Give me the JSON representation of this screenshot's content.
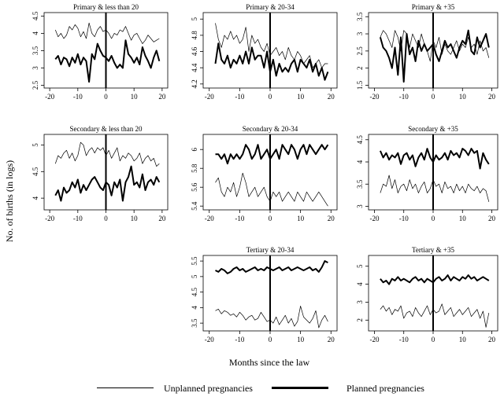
{
  "chart_data": {
    "type": "line",
    "xlabel": "Months since the law",
    "ylabel": "No. of births (in logs)",
    "x": [
      -18,
      -17,
      -16,
      -15,
      -14,
      -13,
      -12,
      -11,
      -10,
      -9,
      -8,
      -7,
      -6,
      -5,
      -4,
      -3,
      -2,
      -1,
      0,
      1,
      2,
      3,
      4,
      5,
      6,
      7,
      8,
      9,
      10,
      11,
      12,
      13,
      14,
      15,
      16,
      17,
      18,
      19
    ],
    "legend": {
      "unplanned": "Unplanned pregnancies",
      "planned": "Planned pregnancies"
    },
    "vline_x": 0,
    "panels": [
      {
        "title": "Primary & less than 20",
        "xticks": [
          -20,
          -10,
          0,
          10,
          20
        ],
        "yticks": [
          2.5,
          3,
          3.5,
          4,
          4.5
        ],
        "ylim": [
          2.42,
          4.6
        ],
        "series": [
          {
            "key": "unplanned",
            "values": [
              4.1,
              3.9,
              4.0,
              3.85,
              3.95,
              4.2,
              4.1,
              4.25,
              4.15,
              3.9,
              4.05,
              3.85,
              4.3,
              4.0,
              3.9,
              4.1,
              4.2,
              4.05,
              4.1,
              4.0,
              3.85,
              4.0,
              3.95,
              4.1,
              4.05,
              4.2,
              4.0,
              3.8,
              3.95,
              4.0,
              3.85,
              3.7,
              3.8,
              3.95,
              3.85,
              3.75,
              3.8,
              3.85
            ]
          },
          {
            "key": "planned",
            "values": [
              3.25,
              3.35,
              3.1,
              3.3,
              3.25,
              3.05,
              3.3,
              3.15,
              3.4,
              3.1,
              3.3,
              3.2,
              2.6,
              3.4,
              3.25,
              3.7,
              3.5,
              3.35,
              3.3,
              3.2,
              3.35,
              3.15,
              3.0,
              3.1,
              3.0,
              3.8,
              3.4,
              3.3,
              3.15,
              3.3,
              3.1,
              3.6,
              3.35,
              3.2,
              3.0,
              3.3,
              3.5,
              3.2
            ]
          }
        ]
      },
      {
        "title": "Primary & 20-34",
        "xticks": [
          -20,
          -10,
          0,
          10,
          20
        ],
        "yticks": [
          4.2,
          4.4,
          4.6,
          4.8,
          5
        ],
        "ylim": [
          4.15,
          5.08
        ],
        "series": [
          {
            "key": "unplanned",
            "values": [
              4.95,
              4.75,
              4.65,
              4.8,
              4.75,
              4.85,
              4.75,
              4.8,
              4.7,
              4.75,
              4.9,
              4.6,
              4.8,
              4.7,
              4.75,
              4.65,
              4.6,
              4.7,
              4.55,
              4.6,
              4.65,
              4.55,
              4.6,
              4.5,
              4.65,
              4.55,
              4.5,
              4.6,
              4.55,
              4.45,
              4.5,
              4.55,
              4.4,
              4.45,
              4.5,
              4.4,
              4.45,
              4.45
            ]
          },
          {
            "key": "planned",
            "values": [
              4.45,
              4.7,
              4.5,
              4.45,
              4.55,
              4.4,
              4.5,
              4.45,
              4.55,
              4.45,
              4.6,
              4.45,
              4.65,
              4.5,
              4.55,
              4.55,
              4.4,
              4.6,
              4.35,
              4.5,
              4.3,
              4.45,
              4.35,
              4.4,
              4.35,
              4.45,
              4.5,
              4.35,
              4.5,
              4.45,
              4.4,
              4.5,
              4.35,
              4.45,
              4.3,
              4.4,
              4.25,
              4.35
            ]
          }
        ]
      },
      {
        "title": "Primary & +35",
        "xticks": [
          -20,
          -10,
          0,
          10,
          20
        ],
        "yticks": [
          1.5,
          2,
          2.5,
          3,
          3.5
        ],
        "ylim": [
          1.42,
          3.62
        ],
        "series": [
          {
            "key": "unplanned",
            "values": [
              2.9,
              3.1,
              3.0,
              2.8,
              2.6,
              3.1,
              2.9,
              2.5,
              3.1,
              3.0,
              2.6,
              3.0,
              2.8,
              2.6,
              3.0,
              2.7,
              2.5,
              2.2,
              2.8,
              2.6,
              2.9,
              2.4,
              2.7,
              2.5,
              2.4,
              2.6,
              2.8,
              2.5,
              2.7,
              2.6,
              2.9,
              2.6,
              2.7,
              2.4,
              2.8,
              2.5,
              2.6,
              2.3
            ]
          },
          {
            "key": "planned",
            "values": [
              2.9,
              2.6,
              2.5,
              2.3,
              2.0,
              2.6,
              1.8,
              2.9,
              1.6,
              3.0,
              2.4,
              2.6,
              2.2,
              2.8,
              2.5,
              2.7,
              2.5,
              2.6,
              2.7,
              2.4,
              2.2,
              2.5,
              2.8,
              2.6,
              2.7,
              2.5,
              2.3,
              2.6,
              2.8,
              2.7,
              3.1,
              2.5,
              2.4,
              2.9,
              2.6,
              2.8,
              3.0,
              2.6
            ]
          }
        ]
      },
      {
        "title": "Secondary & less than 20",
        "xticks": [
          -20,
          -10,
          0,
          10,
          20
        ],
        "yticks": [
          4,
          4.5,
          5
        ],
        "ylim": [
          3.78,
          5.2
        ],
        "series": [
          {
            "key": "unplanned",
            "values": [
              4.65,
              4.8,
              4.75,
              4.85,
              4.9,
              4.75,
              4.85,
              4.7,
              4.8,
              5.05,
              5.0,
              4.8,
              4.9,
              4.95,
              4.85,
              4.95,
              4.9,
              4.95,
              4.8,
              4.9,
              4.75,
              4.85,
              4.95,
              4.7,
              4.8,
              4.75,
              4.85,
              4.8,
              4.7,
              4.75,
              4.85,
              4.65,
              4.75,
              4.8,
              4.7,
              4.75,
              4.6,
              4.65
            ]
          },
          {
            "key": "planned",
            "values": [
              4.05,
              4.15,
              3.95,
              4.2,
              4.1,
              4.15,
              4.3,
              4.2,
              4.35,
              4.1,
              4.25,
              4.15,
              4.25,
              4.35,
              4.4,
              4.3,
              4.2,
              4.15,
              4.3,
              4.25,
              4.05,
              4.3,
              4.2,
              4.35,
              3.95,
              4.3,
              4.4,
              4.6,
              4.25,
              4.3,
              4.2,
              4.45,
              4.15,
              4.3,
              4.35,
              4.25,
              4.4,
              4.3
            ]
          }
        ]
      },
      {
        "title": "Secondary & 20-34",
        "xticks": [
          -20,
          -10,
          0,
          10,
          20
        ],
        "yticks": [
          5.4,
          5.6,
          5.8,
          6
        ],
        "ylim": [
          5.36,
          6.16
        ],
        "series": [
          {
            "key": "unplanned",
            "values": [
              5.65,
              5.7,
              5.55,
              5.5,
              5.6,
              5.55,
              5.65,
              5.5,
              5.6,
              5.75,
              5.65,
              5.5,
              5.55,
              5.6,
              5.5,
              5.55,
              5.6,
              5.5,
              5.45,
              5.55,
              5.5,
              5.55,
              5.45,
              5.5,
              5.55,
              5.5,
              5.45,
              5.55,
              5.5,
              5.45,
              5.55,
              5.5,
              5.45,
              5.5,
              5.55,
              5.5,
              5.45,
              5.4
            ]
          },
          {
            "key": "planned",
            "values": [
              5.95,
              5.95,
              5.9,
              5.95,
              5.85,
              5.95,
              5.9,
              5.95,
              5.9,
              5.95,
              6.05,
              6.0,
              5.9,
              5.95,
              6.05,
              5.9,
              5.95,
              6.0,
              5.9,
              5.95,
              6.0,
              5.9,
              6.05,
              6.0,
              5.95,
              6.05,
              6.0,
              5.9,
              6.0,
              6.05,
              5.95,
              6.05,
              6.0,
              5.95,
              6.0,
              6.05,
              6.0,
              6.05
            ]
          }
        ]
      },
      {
        "title": "Secondary & +35",
        "xticks": [
          -20,
          -10,
          0,
          10,
          20
        ],
        "yticks": [
          3,
          3.5,
          4,
          4.5
        ],
        "ylim": [
          2.92,
          4.62
        ],
        "series": [
          {
            "key": "unplanned",
            "values": [
              3.3,
              3.5,
              3.45,
              3.7,
              3.4,
              3.6,
              3.3,
              3.45,
              3.5,
              3.35,
              3.6,
              3.4,
              3.5,
              3.3,
              3.45,
              3.55,
              3.3,
              3.4,
              3.6,
              3.45,
              3.5,
              3.3,
              3.55,
              3.4,
              3.45,
              3.3,
              3.5,
              3.35,
              3.45,
              3.3,
              3.5,
              3.4,
              3.35,
              3.45,
              3.3,
              3.4,
              3.35,
              3.1
            ]
          },
          {
            "key": "planned",
            "values": [
              4.25,
              4.1,
              4.2,
              4.05,
              4.15,
              4.1,
              4.2,
              3.95,
              4.15,
              4.2,
              4.05,
              4.15,
              3.9,
              4.1,
              4.2,
              4.05,
              4.3,
              4.1,
              4.0,
              4.15,
              4.05,
              4.1,
              4.2,
              4.05,
              4.25,
              4.15,
              4.2,
              4.1,
              4.3,
              4.25,
              4.15,
              4.3,
              4.2,
              4.25,
              3.85,
              4.2,
              4.05,
              3.95
            ]
          }
        ]
      },
      {
        "title": "Tertiary & 20-34",
        "xticks": [
          -20,
          -10,
          0,
          10,
          20
        ],
        "yticks": [
          3.5,
          4,
          4.5,
          5,
          5.5
        ],
        "ylim": [
          3.25,
          5.68
        ],
        "series": [
          {
            "key": "unplanned",
            "values": [
              3.9,
              3.95,
              3.8,
              3.9,
              3.85,
              3.75,
              3.8,
              3.7,
              3.85,
              3.75,
              3.6,
              3.7,
              3.75,
              3.6,
              3.65,
              3.85,
              3.7,
              3.55,
              3.6,
              3.5,
              3.7,
              3.45,
              3.6,
              3.75,
              3.5,
              3.65,
              3.4,
              3.55,
              4.05,
              3.7,
              3.6,
              3.5,
              3.65,
              3.9,
              3.35,
              3.6,
              3.75,
              3.55
            ]
          },
          {
            "key": "planned",
            "values": [
              5.2,
              5.15,
              5.25,
              5.2,
              5.1,
              5.15,
              5.25,
              5.3,
              5.2,
              5.25,
              5.15,
              5.2,
              5.25,
              5.3,
              5.2,
              5.25,
              5.2,
              5.3,
              5.25,
              5.2,
              5.25,
              5.3,
              5.2,
              5.25,
              5.3,
              5.2,
              5.25,
              5.3,
              5.25,
              5.2,
              5.25,
              5.3,
              5.2,
              5.25,
              5.15,
              5.3,
              5.5,
              5.45
            ]
          }
        ]
      },
      {
        "title": "Tertiary & +35",
        "xticks": [
          -20,
          -10,
          0,
          10,
          20
        ],
        "yticks": [
          2,
          3,
          4,
          5
        ],
        "ylim": [
          1.4,
          5.6
        ],
        "series": [
          {
            "key": "unplanned",
            "values": [
              2.6,
              2.8,
              2.5,
              2.7,
              2.3,
              2.6,
              2.5,
              2.8,
              2.1,
              2.4,
              2.5,
              2.2,
              2.7,
              2.4,
              2.2,
              2.5,
              2.8,
              2.3,
              2.6,
              2.4,
              2.5,
              2.9,
              2.3,
              2.5,
              2.7,
              2.2,
              2.4,
              2.6,
              2.3,
              2.5,
              2.7,
              2.2,
              2.4,
              2.6,
              2.1,
              2.5,
              1.6,
              2.4
            ]
          },
          {
            "key": "planned",
            "values": [
              4.3,
              4.1,
              4.2,
              4.0,
              4.3,
              4.2,
              4.4,
              4.2,
              4.3,
              4.2,
              4.1,
              4.3,
              4.4,
              4.2,
              4.3,
              4.1,
              4.3,
              4.2,
              4.1,
              4.3,
              4.4,
              4.2,
              4.3,
              4.5,
              4.2,
              4.4,
              4.3,
              4.2,
              4.4,
              4.3,
              4.5,
              4.3,
              4.4,
              4.2,
              4.3,
              4.4,
              4.3,
              4.2
            ]
          }
        ]
      }
    ]
  }
}
